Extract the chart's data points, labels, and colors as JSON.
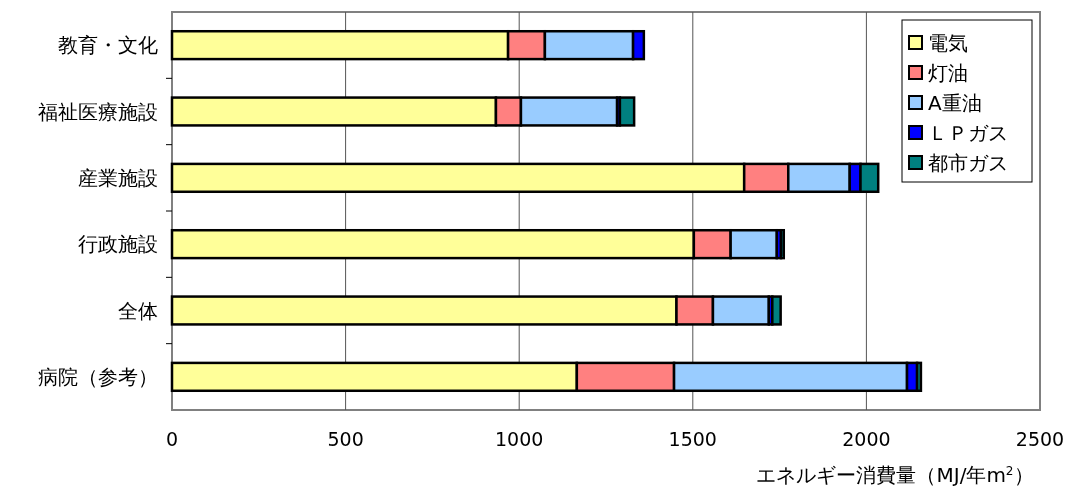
{
  "chart_data": {
    "type": "bar",
    "orientation": "horizontal",
    "stacked": true,
    "categories": [
      "教育・文化",
      "福祉医療施設",
      "産業施設",
      "行政施設",
      "全体",
      "病院（参考）"
    ],
    "series": [
      {
        "name": "電気",
        "color": "#ffff99",
        "values": [
          968,
          933,
          1648,
          1503,
          1453,
          1166
        ]
      },
      {
        "name": "灯油",
        "color": "#ff8080",
        "values": [
          106,
          72,
          127,
          106,
          105,
          280
        ]
      },
      {
        "name": "A重油",
        "color": "#99ccff",
        "values": [
          254,
          277,
          177,
          133,
          161,
          671
        ]
      },
      {
        "name": "ＬＰガス",
        "color": "#0000ff",
        "values": [
          31,
          8,
          31,
          12,
          10,
          29
        ]
      },
      {
        "name": "都市ガス",
        "color": "#008080",
        "values": [
          0,
          41,
          51,
          8,
          24,
          11
        ]
      }
    ],
    "xlim": [
      0,
      2500
    ],
    "xticks": [
      0,
      500,
      1000,
      1500,
      2000,
      2500
    ],
    "xlabel": "エネルギー消費量（MJ/年m$^{2}$）",
    "grid": "x",
    "legend": "top right"
  }
}
